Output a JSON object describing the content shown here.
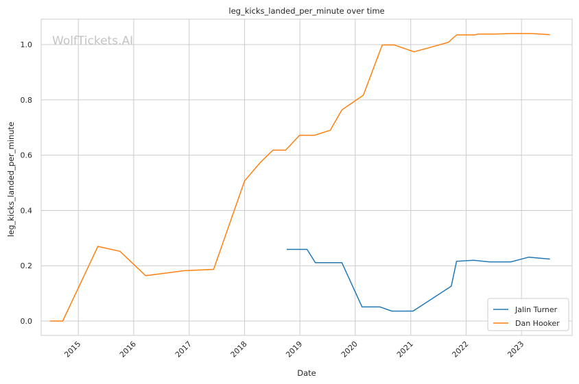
{
  "chart_data": {
    "type": "line",
    "title": "leg_kicks_landed_per_minute over time",
    "xlabel": "Date",
    "ylabel": "leg_kicks_landed_per_minute",
    "watermark": "WolfTickets.AI",
    "xlim": [
      "2014-05-01",
      "2023-12-01"
    ],
    "ylim": [
      -0.052,
      1.092
    ],
    "x_ticks": [
      "2015-01-01",
      "2016-01-01",
      "2017-01-01",
      "2018-01-01",
      "2019-01-01",
      "2020-01-01",
      "2021-01-01",
      "2022-01-01",
      "2023-01-01"
    ],
    "x_tick_labels": [
      "2015",
      "2016",
      "2017",
      "2018",
      "2019",
      "2020",
      "2021",
      "2022",
      "2023"
    ],
    "y_ticks": [
      0.0,
      0.2,
      0.4,
      0.6,
      0.8,
      1.0
    ],
    "y_tick_labels": [
      "0.0",
      "0.2",
      "0.4",
      "0.6",
      "0.8",
      "1.0"
    ],
    "grid": true,
    "legend_position": "lower-right",
    "series": [
      {
        "name": "Jalin Turner",
        "color": "#1f77b4",
        "points": [
          [
            "2018-10-06",
            0.259
          ],
          [
            "2019-02-17",
            0.259
          ],
          [
            "2019-04-13",
            0.211
          ],
          [
            "2019-10-05",
            0.211
          ],
          [
            "2020-02-15",
            0.051
          ],
          [
            "2020-06-13",
            0.051
          ],
          [
            "2020-08-29",
            0.036
          ],
          [
            "2021-01-16",
            0.036
          ],
          [
            "2021-09-25",
            0.126
          ],
          [
            "2021-10-30",
            0.216
          ],
          [
            "2022-02-19",
            0.22
          ],
          [
            "2022-06-04",
            0.214
          ],
          [
            "2022-10-22",
            0.214
          ],
          [
            "2023-02-18",
            0.231
          ],
          [
            "2023-07-08",
            0.224
          ]
        ]
      },
      {
        "name": "Dan Hooker",
        "color": "#ff7f0e",
        "points": [
          [
            "2014-06-28",
            0.0
          ],
          [
            "2014-09-20",
            0.0
          ],
          [
            "2015-05-10",
            0.27
          ],
          [
            "2015-10-03",
            0.252
          ],
          [
            "2016-03-20",
            0.164
          ],
          [
            "2016-11-27",
            0.182
          ],
          [
            "2017-06-11",
            0.187
          ],
          [
            "2018-01-01",
            0.507
          ],
          [
            "2018-04-14",
            0.573
          ],
          [
            "2018-07-07",
            0.618
          ],
          [
            "2018-09-29",
            0.618
          ],
          [
            "2018-12-30",
            0.672
          ],
          [
            "2019-04-06",
            0.672
          ],
          [
            "2019-07-20",
            0.69
          ],
          [
            "2019-10-05",
            0.764
          ],
          [
            "2020-02-23",
            0.817
          ],
          [
            "2020-06-27",
            0.999
          ],
          [
            "2020-09-12",
            0.999
          ],
          [
            "2021-01-23",
            0.974
          ],
          [
            "2021-09-05",
            1.008
          ],
          [
            "2021-10-30",
            1.035
          ],
          [
            "2022-02-26",
            1.035
          ],
          [
            "2022-03-19",
            1.038
          ],
          [
            "2022-07-09",
            1.038
          ],
          [
            "2022-11-05",
            1.04
          ],
          [
            "2023-03-04",
            1.04
          ],
          [
            "2023-07-08",
            1.036
          ]
        ]
      }
    ]
  }
}
